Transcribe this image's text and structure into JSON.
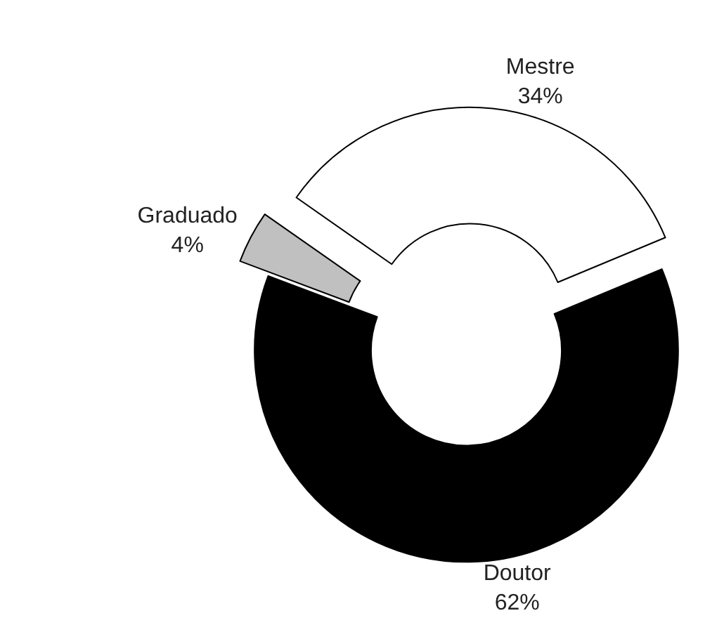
{
  "chart_data": {
    "type": "donut",
    "categories": [
      "Mestre",
      "Doutor",
      "Graduado"
    ],
    "values": [
      34,
      62,
      4
    ],
    "value_labels": [
      "34%",
      "62%",
      "4%"
    ],
    "colors": [
      "#ffffff",
      "#000000",
      "#c0c0c0"
    ],
    "legend": false
  }
}
